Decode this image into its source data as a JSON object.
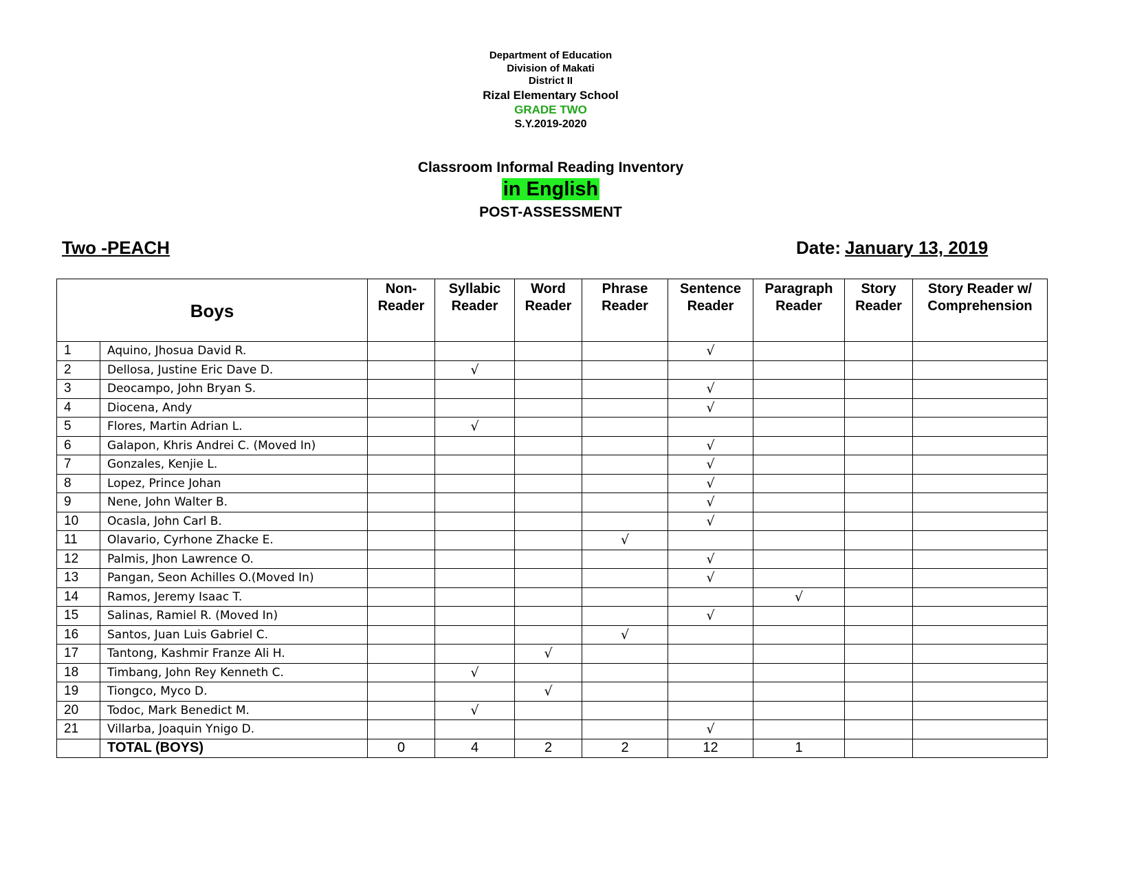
{
  "header": {
    "dept": "Department of Education",
    "division": "Division of Makati",
    "district": "District II",
    "school": "Rizal Elementary School",
    "grade": "GRADE TWO",
    "sy": "S.Y.2019-2020"
  },
  "title": {
    "line1": "Classroom Informal Reading Inventory",
    "line2": "in English",
    "line3": "POST-ASSESSMENT"
  },
  "section": "Two -PEACH",
  "date_label": "Date:",
  "date_value": "January 13, 2019",
  "table": {
    "group_header": "Boys",
    "columns": [
      "Non-\nReader",
      "Syllabic\nReader",
      "Word\nReader",
      "Phrase\nReader",
      "Sentence\nReader",
      "Paragraph\nReader",
      "Story\nReader",
      "Story Reader w/\nComprehension"
    ],
    "check_mark": "√",
    "rows": [
      {
        "no": "1",
        "name": "Aquino, Jhosua David R.",
        "level": 4
      },
      {
        "no": "2",
        "name": "Dellosa, Justine Eric Dave D.",
        "level": 1
      },
      {
        "no": "3",
        "name": "Deocampo, John Bryan S.",
        "level": 4
      },
      {
        "no": "4",
        "name": "Diocena, Andy",
        "level": 4
      },
      {
        "no": "5",
        "name": "Flores, Martin Adrian L.",
        "level": 1
      },
      {
        "no": "6",
        "name": "Galapon, Khris Andrei C. (Moved In)",
        "level": 4
      },
      {
        "no": "7",
        "name": "Gonzales, Kenjie L.",
        "level": 4
      },
      {
        "no": "8",
        "name": "Lopez, Prince Johan",
        "level": 4
      },
      {
        "no": "9",
        "name": "Nene, John Walter B.",
        "level": 4
      },
      {
        "no": "10",
        "name": "Ocasla, John Carl B.",
        "level": 4
      },
      {
        "no": "11",
        "name": "Olavario, Cyrhone Zhacke E.",
        "level": 3
      },
      {
        "no": "12",
        "name": "Palmis, Jhon Lawrence O.",
        "level": 4
      },
      {
        "no": "13",
        "name": "Pangan, Seon Achilles O.(Moved In)",
        "level": 4
      },
      {
        "no": "14",
        "name": "Ramos, Jeremy Isaac T.",
        "level": 5
      },
      {
        "no": "15",
        "name": "Salinas, Ramiel R. (Moved In)",
        "level": 4
      },
      {
        "no": "16",
        "name": "Santos, Juan Luis Gabriel C.",
        "level": 3
      },
      {
        "no": "17",
        "name": "Tantong, Kashmir Franze Ali H.",
        "level": 2
      },
      {
        "no": "18",
        "name": "Timbang, John Rey Kenneth C.",
        "level": 1
      },
      {
        "no": "19",
        "name": "Tiongco, Myco D.",
        "level": 2
      },
      {
        "no": "20",
        "name": "Todoc, Mark Benedict M.",
        "level": 1
      },
      {
        "no": "21",
        "name": "Villarba, Joaquin Ynigo D.",
        "level": 4
      }
    ],
    "total_label": "TOTAL (BOYS)",
    "totals": [
      "0",
      "4",
      "2",
      "2",
      "12",
      "1",
      "",
      ""
    ]
  }
}
